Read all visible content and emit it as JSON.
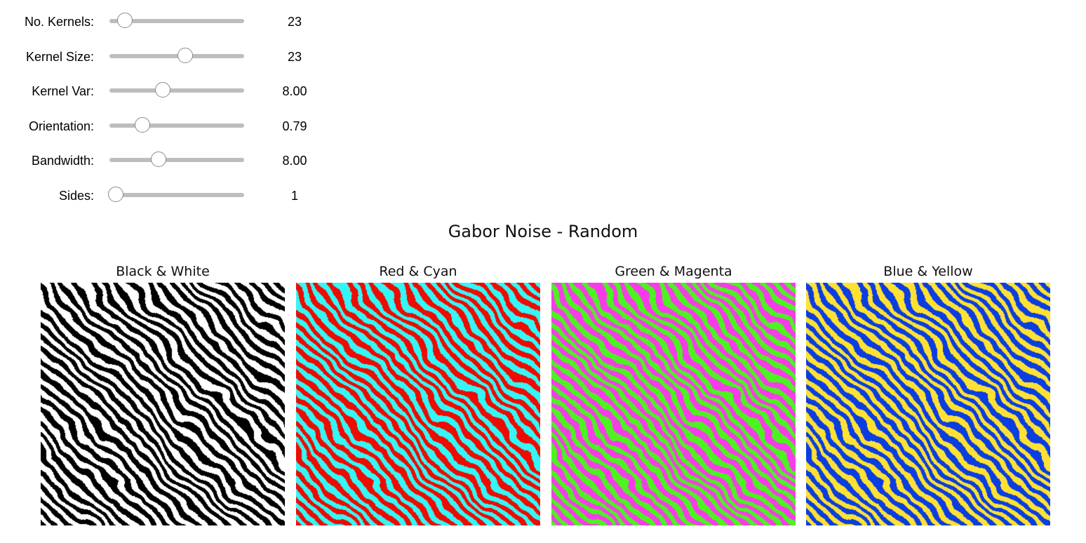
{
  "controls": {
    "sliders": [
      {
        "id": "no-kernels",
        "label": "No. Kernels:",
        "value": "23",
        "fraction": 0.12
      },
      {
        "id": "kernel-size",
        "label": "Kernel Size:",
        "value": "23",
        "fraction": 0.57
      },
      {
        "id": "kernel-var",
        "label": "Kernel Var:",
        "value": "8.00",
        "fraction": 0.4
      },
      {
        "id": "orientation",
        "label": "Orientation:",
        "value": "0.79",
        "fraction": 0.25
      },
      {
        "id": "bandwidth",
        "label": "Bandwidth:",
        "value": "8.00",
        "fraction": 0.37
      },
      {
        "id": "sides",
        "label": "Sides:",
        "value": "1",
        "fraction": 0.0
      }
    ]
  },
  "figure": {
    "title": "Gabor Noise - Random",
    "panels": [
      {
        "id": "bw",
        "title": "Black & White",
        "color_a": "#000000",
        "color_b": "#ffffff"
      },
      {
        "id": "rc",
        "title": "Red & Cyan",
        "color_a": "#ee0b00",
        "color_b": "#34f6f6"
      },
      {
        "id": "gm",
        "title": "Green & Magenta",
        "color_a": "#4cf321",
        "color_b": "#f63ce8"
      },
      {
        "id": "by",
        "title": "Blue & Yellow",
        "color_a": "#0a3ee0",
        "color_b": "#ffe133"
      }
    ]
  }
}
